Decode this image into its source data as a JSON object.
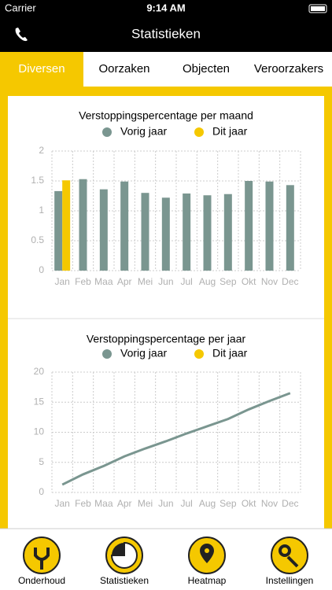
{
  "status_bar": {
    "carrier": "Carrier",
    "time": "9:14 AM"
  },
  "header": {
    "title": "Statistieken"
  },
  "tabs": [
    "Diversen",
    "Oorzaken",
    "Objecten",
    "Veroorzakers"
  ],
  "chart_data": [
    {
      "type": "bar",
      "title": "Verstoppingspercentage per maand",
      "categories": [
        "Jan",
        "Feb",
        "Maa",
        "Apr",
        "Mei",
        "Jun",
        "Jul",
        "Aug",
        "Sep",
        "Okt",
        "Nov",
        "Dec"
      ],
      "series": [
        {
          "name": "Vorig jaar",
          "color": "#7a9690",
          "values": [
            1.33,
            1.53,
            1.36,
            1.49,
            1.3,
            1.22,
            1.29,
            1.26,
            1.28,
            1.5,
            1.49,
            1.43
          ]
        },
        {
          "name": "Dit jaar",
          "color": "#f5c800",
          "values": [
            1.51,
            null,
            null,
            null,
            null,
            null,
            null,
            null,
            null,
            null,
            null,
            null
          ]
        }
      ],
      "ylim": [
        0,
        2
      ],
      "yticks": [
        0,
        0.5,
        1,
        1.5,
        2
      ],
      "grid": true
    },
    {
      "type": "line",
      "title": "Verstoppingspercentage per jaar",
      "categories": [
        "Jan",
        "Feb",
        "Maa",
        "Apr",
        "Mei",
        "Jun",
        "Jul",
        "Aug",
        "Sep",
        "Okt",
        "Nov",
        "Dec"
      ],
      "series": [
        {
          "name": "Vorig jaar",
          "color": "#7a9690",
          "values": [
            1.3,
            3.0,
            4.4,
            6.0,
            7.3,
            8.5,
            9.8,
            11.0,
            12.2,
            13.8,
            15.2,
            16.5
          ]
        },
        {
          "name": "Dit jaar",
          "color": "#f5c800",
          "values": [
            null,
            null,
            null,
            null,
            null,
            null,
            null,
            null,
            null,
            null,
            null,
            null
          ]
        }
      ],
      "ylim": [
        0,
        20
      ],
      "yticks": [
        0,
        5,
        10,
        15,
        20
      ],
      "grid": true
    }
  ],
  "tab_bar": [
    "Onderhoud",
    "Statistieken",
    "Heatmap",
    "Instellingen"
  ]
}
